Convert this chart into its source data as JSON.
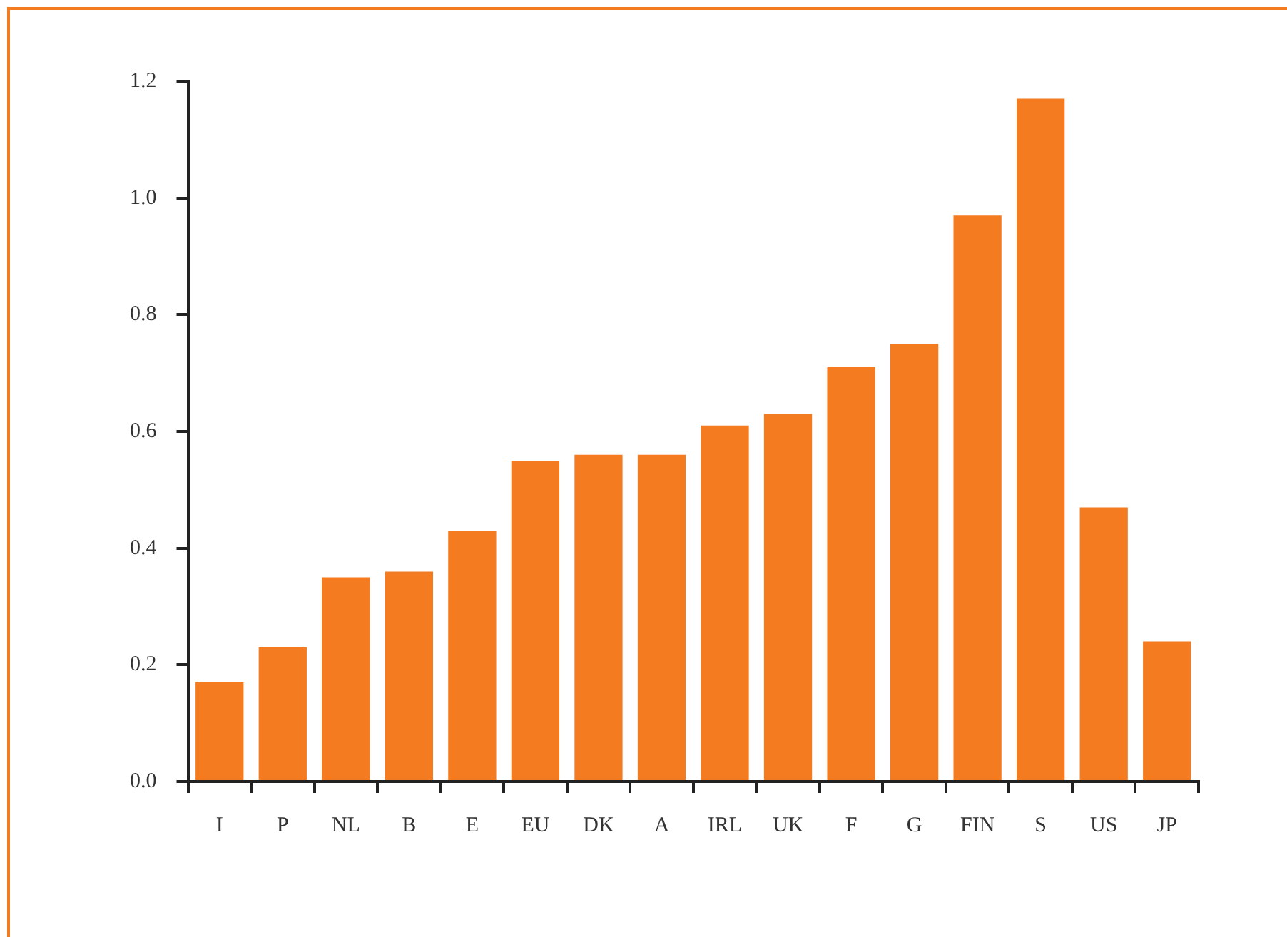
{
  "chart_data": {
    "type": "bar",
    "categories": [
      "I",
      "P",
      "NL",
      "B",
      "E",
      "EU",
      "DK",
      "A",
      "IRL",
      "UK",
      "F",
      "G",
      "FIN",
      "S",
      "US",
      "JP"
    ],
    "values": [
      0.17,
      0.23,
      0.35,
      0.36,
      0.43,
      0.55,
      0.56,
      0.56,
      0.61,
      0.63,
      0.71,
      0.75,
      0.97,
      1.17,
      0.47,
      0.24
    ],
    "color": "#f47b20",
    "ylim": [
      0,
      1.2
    ],
    "yticks": [
      {
        "value": 0,
        "label": "0.0"
      },
      {
        "value": 0.2,
        "label": "0.2"
      },
      {
        "value": 0.4,
        "label": "0.4"
      },
      {
        "value": 0.6,
        "label": "0.6"
      },
      {
        "value": 0.8,
        "label": "0.8"
      },
      {
        "value": 1.0,
        "label": "1.0"
      },
      {
        "value": 1.2,
        "label": "1.2"
      }
    ],
    "grid": false,
    "legend": false
  }
}
